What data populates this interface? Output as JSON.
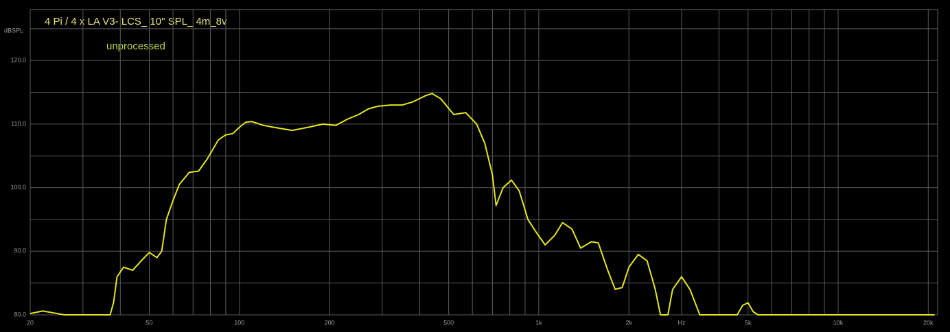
{
  "chart_data": {
    "type": "line",
    "title": "4 Pi / 4 x LA V3- LCS_ 10\" SPL_ 4m_8v",
    "subtitle": "unprocessed",
    "y_label": "dBSPL",
    "log_x": true,
    "grid": true,
    "xlim": [
      20,
      21500
    ],
    "ylim": [
      80,
      128
    ],
    "xticks": [
      20,
      50,
      100,
      200,
      500,
      {
        "value": 1000,
        "label": "1k"
      },
      {
        "value": 2000,
        "label": "2k"
      },
      {
        "value": 3000,
        "label": "Hz"
      },
      {
        "value": 5000,
        "label": "5k"
      },
      {
        "value": 10000,
        "label": "10k"
      },
      {
        "value": 20000,
        "label": "20k"
      }
    ],
    "xgrid": [
      20,
      30,
      40,
      50,
      60,
      70,
      80,
      90,
      100,
      200,
      300,
      400,
      500,
      600,
      700,
      800,
      900,
      1000,
      2000,
      3000,
      4000,
      5000,
      6000,
      7000,
      8000,
      9000,
      10000,
      20000
    ],
    "yticks": [
      {
        "value": 80,
        "label": "80.0"
      },
      {
        "value": 90,
        "label": "90.0"
      },
      {
        "value": 100,
        "label": "100.0"
      },
      {
        "value": 110,
        "label": "110.0"
      },
      {
        "value": 120,
        "label": "120.0"
      }
    ],
    "ygrid": [
      80,
      85,
      90,
      95,
      100,
      105,
      110,
      115,
      120,
      125
    ],
    "series": [
      {
        "name": "SPL",
        "color": "#e6e619",
        "x": [
          20,
          22,
          24,
          26,
          37,
          38,
          39,
          41,
          44,
          47,
          50,
          53,
          55,
          57,
          60,
          63,
          68,
          73,
          78,
          85,
          90,
          95,
          100,
          105,
          110,
          120,
          130,
          150,
          170,
          190,
          210,
          230,
          250,
          270,
          290,
          320,
          350,
          380,
          420,
          440,
          470,
          520,
          570,
          620,
          660,
          700,
          720,
          760,
          810,
          860,
          920,
          980,
          1050,
          1130,
          1200,
          1290,
          1380,
          1500,
          1580,
          1700,
          1800,
          1900,
          2000,
          2150,
          2300,
          2450,
          2550,
          2700,
          2800,
          3000,
          3200,
          3450,
          4600,
          4800,
          5000,
          5200,
          5400,
          21000
        ],
        "values": [
          80.2,
          80.6,
          80.3,
          80,
          80,
          82,
          86,
          87.5,
          87,
          88.5,
          89.8,
          89,
          90,
          95,
          98,
          100.5,
          102.4,
          102.6,
          104.5,
          107.5,
          108.3,
          108.5,
          109.5,
          110.3,
          110.4,
          109.8,
          109.5,
          109,
          109.5,
          110,
          109.8,
          110.8,
          111.5,
          112.4,
          112.8,
          113,
          113,
          113.5,
          114.5,
          114.8,
          114,
          111.5,
          111.8,
          110,
          107,
          102,
          97.2,
          100,
          101.2,
          99.5,
          95,
          93,
          91,
          92.5,
          94.5,
          93.5,
          90.5,
          91.5,
          91.3,
          87,
          84,
          84.3,
          87.5,
          89.5,
          88.5,
          84,
          80,
          80,
          84,
          86,
          84,
          80,
          80,
          81.5,
          81.9,
          80.5,
          80,
          80
        ]
      }
    ]
  }
}
